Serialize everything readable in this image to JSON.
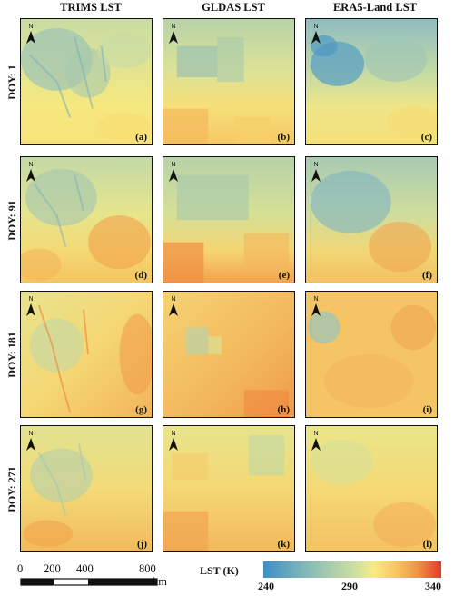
{
  "columns": [
    "TRIMS LST",
    "GLDAS LST",
    "ERA5-Land LST"
  ],
  "rows": [
    {
      "label": "DOY: 1",
      "panels": [
        "(a)",
        "(b)",
        "(c)"
      ]
    },
    {
      "label": "DOY: 91",
      "panels": [
        "(d)",
        "(e)",
        "(f)"
      ]
    },
    {
      "label": "DOY: 181",
      "panels": [
        "(g)",
        "(h)",
        "(i)"
      ]
    },
    {
      "label": "DOY: 271",
      "panels": [
        "(j)",
        "(k)",
        "(l)"
      ]
    }
  ],
  "north_label": "N",
  "scale_bar": {
    "ticks": [
      "0",
      "200",
      "400",
      "800"
    ],
    "unit": "km"
  },
  "legend": {
    "title": "LST (K)",
    "ticks": [
      "240",
      "290",
      "340"
    ],
    "range": [
      240,
      340
    ],
    "colors": [
      "#3d8fc6",
      "#8fbfb6",
      "#cfe0a0",
      "#f7ec80",
      "#f8c860",
      "#f1923f",
      "#e23a2a"
    ]
  }
}
